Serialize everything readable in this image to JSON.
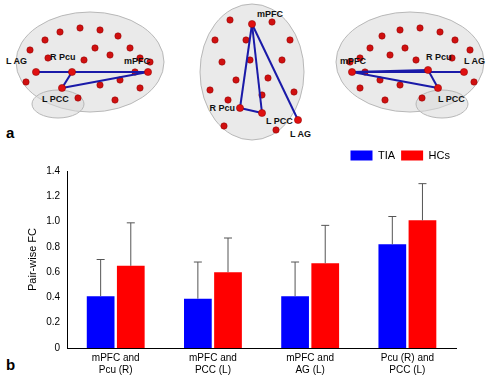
{
  "panel_a": {
    "label": "a",
    "views": [
      {
        "nodes": [
          "L AG",
          "R Pcu",
          "L PCC",
          "mPFC"
        ]
      },
      {
        "nodes": [
          "mPFC",
          "R Pcu",
          "L PCC",
          "L AG"
        ]
      },
      {
        "nodes": [
          "mPFC",
          "R Pcu",
          "L AG",
          "L PCC"
        ]
      }
    ],
    "edges": [
      [
        "mPFC",
        "R Pcu"
      ],
      [
        "mPFC",
        "L PCC"
      ],
      [
        "mPFC",
        "L AG"
      ],
      [
        "R Pcu",
        "L PCC"
      ]
    ]
  },
  "panel_b": {
    "label": "b"
  },
  "chart_data": {
    "type": "bar",
    "y_label": "Pair-wise FC",
    "categories": [
      [
        "mPFC and",
        "Pcu (R)"
      ],
      [
        "mPFC and",
        "PCC (L)"
      ],
      [
        "mPFC and",
        "AG (L)"
      ],
      [
        "Pcu (R) and",
        "PCC (L)"
      ]
    ],
    "series": [
      {
        "name": "TIA",
        "color": "#0000ff",
        "values": [
          0.41,
          0.39,
          0.41,
          0.82
        ],
        "errors": [
          0.29,
          0.29,
          0.27,
          0.22
        ]
      },
      {
        "name": "HCs",
        "color": "#ff0000",
        "values": [
          0.65,
          0.6,
          0.67,
          1.01
        ],
        "errors": [
          0.34,
          0.27,
          0.3,
          0.29
        ]
      }
    ],
    "ylim": [
      0,
      1.4
    ],
    "yticks": [
      0,
      0.2,
      0.4,
      0.6,
      0.8,
      {
        "value": 1,
        "label": "1.0"
      },
      1.2,
      1.4
    ],
    "grid": false,
    "legend": "top-right"
  }
}
